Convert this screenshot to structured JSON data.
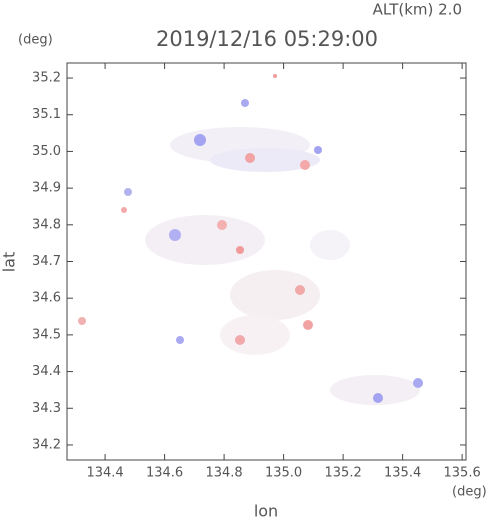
{
  "chart_data": {
    "type": "map",
    "title": "2019/12/16 05:29:00",
    "subtitle": "ALT(km) 2.0",
    "x_label": "lon",
    "y_label": "lat",
    "x_unit": "(deg)",
    "y_unit": "(deg)",
    "xlim": [
      134.272,
      135.613
    ],
    "ylim": [
      34.159,
      35.241
    ],
    "xticks": [
      134.4,
      134.6,
      134.8,
      {
        "value": 135,
        "label": "135.0"
      },
      135.2,
      135.4,
      135.6
    ],
    "yticks": [
      34.2,
      34.3,
      34.4,
      34.5,
      34.6,
      34.7,
      34.8,
      34.9,
      {
        "value": 35,
        "label": "35.0"
      },
      35.1,
      35.2
    ]
  }
}
